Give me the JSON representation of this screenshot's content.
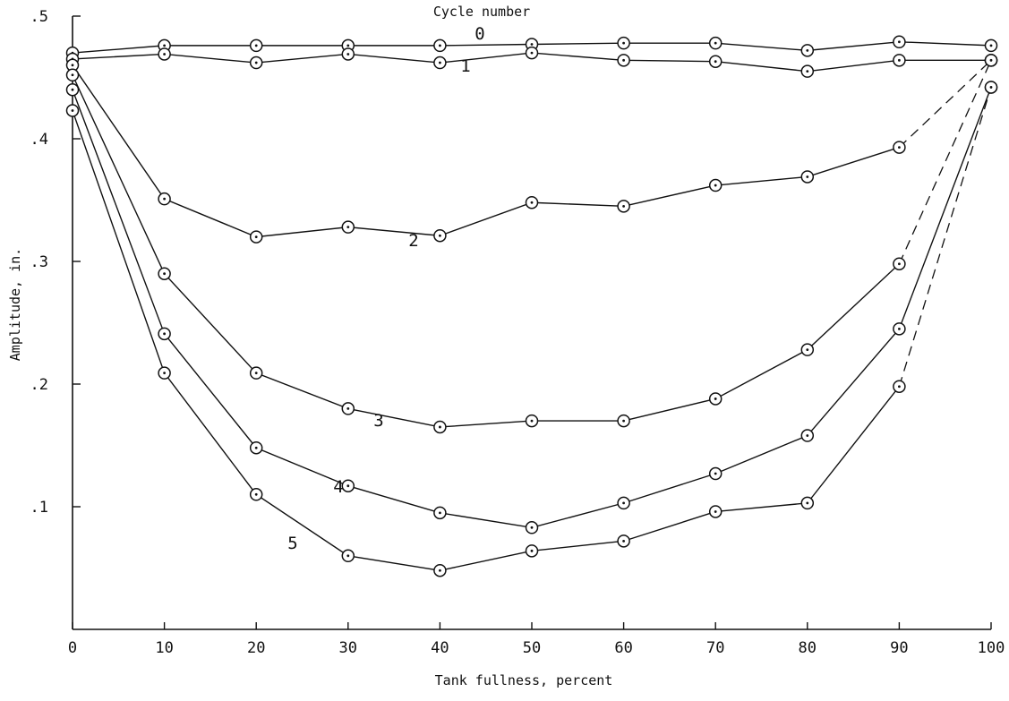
{
  "chart_data": {
    "type": "line",
    "title": "",
    "legend_title": "Cycle number",
    "xlabel": "Tank fullness, percent",
    "ylabel": "Amplitude, in.",
    "xlim": [
      0,
      100
    ],
    "ylim": [
      0,
      0.5
    ],
    "x_ticks": [
      0,
      10,
      20,
      30,
      40,
      50,
      60,
      70,
      80,
      90,
      100
    ],
    "x_tick_labels": [
      "0",
      "10",
      "20",
      "30",
      "40",
      "50",
      "60",
      "70",
      "80",
      "90",
      "100"
    ],
    "y_ticks": [
      0.1,
      0.2,
      0.3,
      0.4,
      0.5
    ],
    "y_tick_labels": [
      ".1",
      ".2",
      ".3",
      ".4",
      ".5"
    ],
    "grid": false,
    "x": [
      0,
      10,
      20,
      30,
      40,
      50,
      60,
      70,
      80,
      90,
      100
    ],
    "series": [
      {
        "name": "0",
        "values": [
          0.47,
          0.476,
          0.476,
          0.476,
          0.476,
          0.477,
          0.478,
          0.478,
          0.472,
          0.479,
          0.476
        ],
        "dashed_from_index": null
      },
      {
        "name": "1",
        "values": [
          0.465,
          0.469,
          0.462,
          0.469,
          0.462,
          0.47,
          0.464,
          0.463,
          0.455,
          0.464,
          0.464
        ],
        "dashed_from_index": null
      },
      {
        "name": "2",
        "values": [
          0.46,
          0.351,
          0.32,
          0.328,
          0.321,
          0.348,
          0.345,
          0.362,
          0.369,
          0.393,
          0.464
        ],
        "dashed_from_index": 9
      },
      {
        "name": "3",
        "values": [
          0.452,
          0.29,
          0.209,
          0.18,
          0.165,
          0.17,
          0.17,
          0.188,
          0.228,
          0.298,
          0.464
        ],
        "dashed_from_index": 9
      },
      {
        "name": "4",
        "values": [
          0.44,
          0.241,
          0.148,
          0.117,
          0.095,
          0.083,
          0.103,
          0.127,
          0.158,
          0.245,
          0.442
        ],
        "dashed_from_index": null
      },
      {
        "name": "5",
        "values": [
          0.423,
          0.209,
          0.11,
          0.06,
          0.048,
          0.064,
          0.072,
          0.096,
          0.103,
          0.198,
          0.442
        ],
        "dashed_from_index": 9
      }
    ]
  }
}
